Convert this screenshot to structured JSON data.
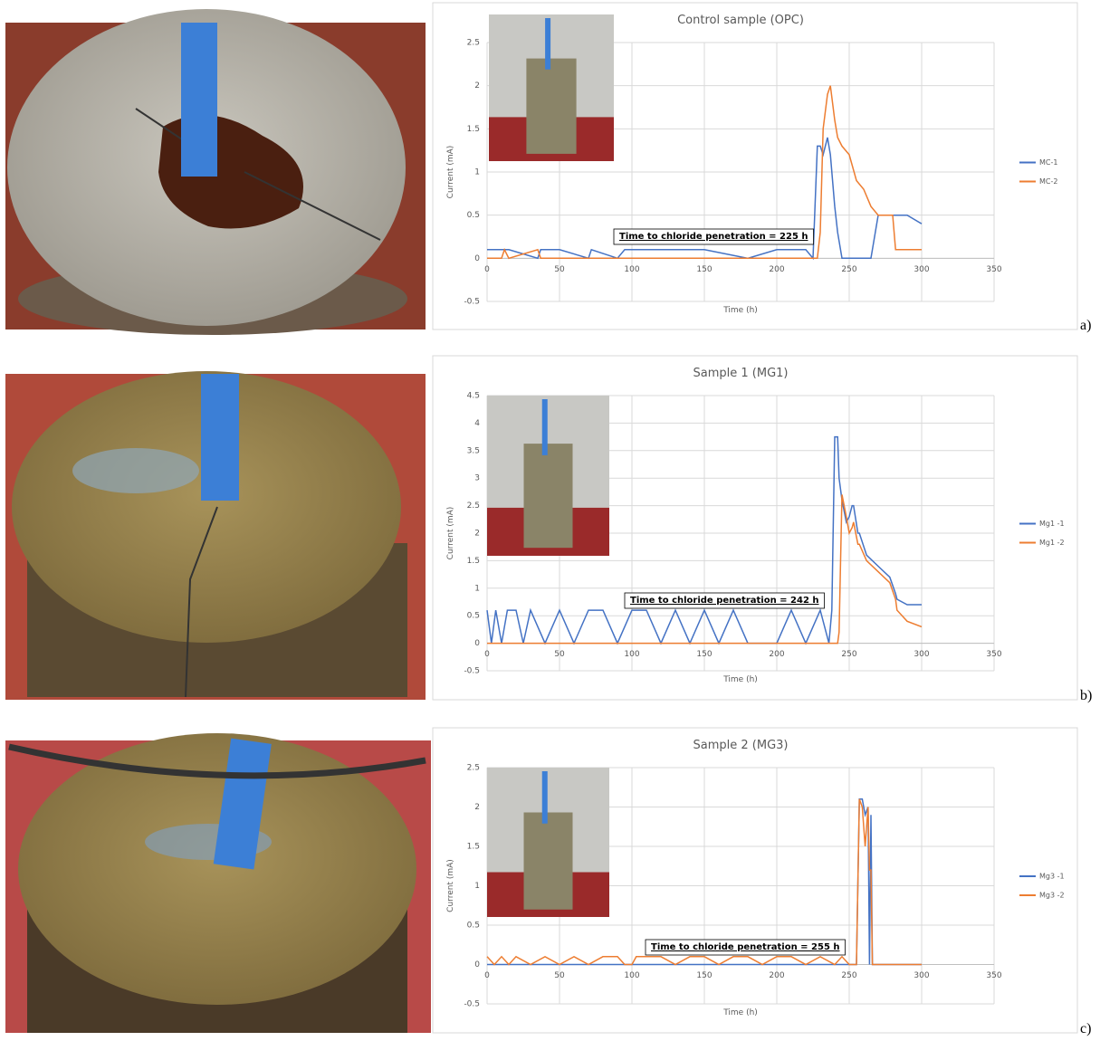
{
  "chart_data": [
    {
      "type": "line",
      "panel_label": "a)",
      "title": "Control sample (OPC)",
      "x_label": "Time (h)",
      "y_label": "Current (mA)",
      "annotation": "Time to chloride penetration = 225 h",
      "x": [
        0,
        5,
        10,
        12,
        15,
        35,
        37,
        40,
        50,
        70,
        72,
        90,
        95,
        100,
        150,
        180,
        200,
        220,
        225,
        228,
        230,
        232,
        235,
        237,
        240,
        242,
        245,
        250,
        255,
        260,
        265,
        270,
        275,
        280,
        282,
        290,
        300
      ],
      "series": [
        {
          "name": "MC-1",
          "color": "#4472c4",
          "values": [
            0.1,
            0.1,
            0.1,
            0.1,
            0.1,
            0,
            0.1,
            0.1,
            0.1,
            0,
            0.1,
            0,
            0.1,
            0.1,
            0.1,
            0,
            0.1,
            0.1,
            0,
            1.3,
            1.3,
            1.2,
            1.4,
            1.2,
            0.6,
            0.3,
            0,
            0,
            0,
            0,
            0,
            0.5,
            0.5,
            0.5,
            0.5,
            0.5,
            0.4
          ]
        },
        {
          "name": "MC-2",
          "color": "#ed7d31",
          "values": [
            0,
            0,
            0,
            0.1,
            0,
            0.1,
            0,
            0,
            0,
            0,
            0,
            0,
            0,
            0,
            0,
            0,
            0,
            0,
            0,
            0,
            0.3,
            1.5,
            1.9,
            2.0,
            1.6,
            1.4,
            1.3,
            1.2,
            0.9,
            0.8,
            0.6,
            0.5,
            0.5,
            0.5,
            0.1,
            0.1,
            0.1
          ]
        }
      ],
      "xlim": [
        0,
        350
      ],
      "xticks": [
        0,
        50,
        100,
        150,
        200,
        250,
        300,
        350
      ],
      "ylim": [
        -0.5,
        2.5
      ],
      "yticks": [
        -0.5,
        0,
        0.5,
        1,
        1.5,
        2,
        2.5
      ],
      "grid": true,
      "legend": "right"
    },
    {
      "type": "line",
      "panel_label": "b)",
      "title": "Sample 1 (MG1)",
      "x_label": "Time (h)",
      "y_label": "Current (mA)",
      "annotation": "Time to chloride penetration = 242 h",
      "x": [
        0,
        3,
        6,
        10,
        14,
        20,
        25,
        30,
        40,
        50,
        60,
        70,
        80,
        90,
        100,
        110,
        120,
        130,
        140,
        150,
        160,
        170,
        180,
        190,
        200,
        210,
        220,
        230,
        236,
        238,
        240,
        242,
        243,
        245,
        248,
        250,
        252,
        253,
        256,
        257,
        262,
        270,
        278,
        282,
        283,
        290,
        300
      ],
      "series": [
        {
          "name": "Mg1 -1",
          "color": "#4472c4",
          "values": [
            0.6,
            0,
            0.6,
            0,
            0.6,
            0.6,
            0,
            0.6,
            0,
            0.6,
            0,
            0.6,
            0.6,
            0,
            0.6,
            0.6,
            0,
            0.6,
            0,
            0.6,
            0,
            0.6,
            0,
            0,
            0,
            0.6,
            0,
            0.6,
            0,
            0.6,
            3.75,
            3.75,
            3.0,
            2.6,
            2.2,
            2.3,
            2.5,
            2.5,
            2.0,
            2.0,
            1.6,
            1.4,
            1.2,
            0.9,
            0.8,
            0.7,
            0.7
          ]
        },
        {
          "name": "Mg1 -2",
          "color": "#ed7d31",
          "values": [
            0,
            0,
            0,
            0,
            0,
            0,
            0,
            0,
            0,
            0,
            0,
            0,
            0,
            0,
            0,
            0,
            0,
            0,
            0,
            0,
            0,
            0,
            0,
            0,
            0,
            0,
            0,
            0,
            0,
            0,
            0,
            0,
            0.2,
            2.7,
            2.3,
            2.0,
            2.1,
            2.2,
            1.8,
            1.8,
            1.5,
            1.3,
            1.1,
            0.8,
            0.6,
            0.4,
            0.3
          ]
        }
      ],
      "xlim": [
        0,
        350
      ],
      "xticks": [
        0,
        50,
        100,
        150,
        200,
        250,
        300,
        350
      ],
      "ylim": [
        -0.5,
        4.5
      ],
      "yticks": [
        -0.5,
        0,
        0.5,
        1,
        1.5,
        2,
        2.5,
        3,
        3.5,
        4,
        4.5
      ],
      "grid": true,
      "legend": "right"
    },
    {
      "type": "line",
      "panel_label": "c)",
      "title": "Sample 2 (MG3)",
      "x_label": "Time (h)",
      "y_label": "Current (mA)",
      "annotation": "Time to chloride penetration = 255 h",
      "x": [
        0,
        5,
        10,
        15,
        20,
        30,
        40,
        50,
        60,
        70,
        80,
        90,
        95,
        100,
        103,
        110,
        120,
        130,
        140,
        150,
        160,
        170,
        180,
        190,
        200,
        210,
        220,
        230,
        240,
        245,
        250,
        255,
        257,
        259,
        261,
        263,
        264,
        265,
        266,
        270,
        300
      ],
      "series": [
        {
          "name": "Mg3 -1",
          "color": "#4472c4",
          "values": [
            0,
            0,
            0,
            0,
            0,
            0,
            0,
            0,
            0,
            0,
            0,
            0,
            0,
            0,
            0,
            0,
            0,
            0,
            0,
            0,
            0,
            0,
            0,
            0,
            0,
            0,
            0,
            0,
            0,
            0,
            0,
            0,
            2.1,
            2.1,
            1.9,
            2.0,
            0,
            1.9,
            0,
            0,
            0
          ]
        },
        {
          "name": "Mg3 -2",
          "color": "#ed7d31",
          "values": [
            0.1,
            0,
            0.1,
            0,
            0.1,
            0,
            0.1,
            0,
            0.1,
            0,
            0.1,
            0.1,
            0,
            0,
            0.1,
            0.1,
            0.1,
            0,
            0.1,
            0.1,
            0,
            0.1,
            0.1,
            0,
            0.1,
            0.1,
            0,
            0.1,
            0,
            0.1,
            0,
            0,
            2.1,
            2.0,
            1.5,
            2.0,
            1.2,
            1.2,
            0,
            0,
            0
          ]
        }
      ],
      "xlim": [
        0,
        350
      ],
      "xticks": [
        0,
        50,
        100,
        150,
        200,
        250,
        300,
        350
      ],
      "ylim": [
        -0.5,
        2.5
      ],
      "yticks": [
        -0.5,
        0,
        0.5,
        1,
        1.5,
        2,
        2.5
      ],
      "grid": true,
      "legend": "right"
    }
  ]
}
